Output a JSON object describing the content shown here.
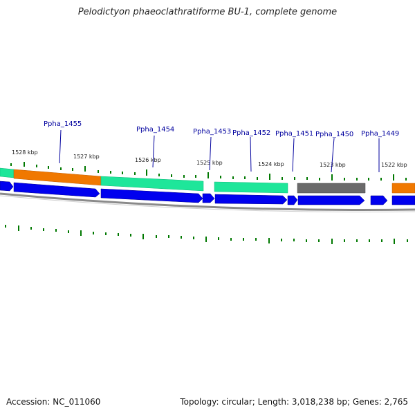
{
  "title": "Pelodictyon phaeoclathratiforme BU-1, complete genome",
  "footer": {
    "accession": "Accession: NC_011060",
    "topology": "Topology: circular; Length: 3,018,238 bp; Genes: 2,765"
  },
  "colors": {
    "forward_strand": "#0000ee",
    "green_feature": "#1ee69a",
    "orange_feature": "#f07800",
    "gray_feature": "#6a6a6a",
    "gene_label": "#00009e",
    "tick": "#007800",
    "backbone": "#8a8a8a"
  },
  "kbp_labels": [
    "1528 kbp",
    "1527 kbp",
    "1526 kbp",
    "1525 kbp",
    "1524 kbp",
    "1523 kbp",
    "1522 kbp"
  ],
  "gene_labels": [
    "Ppha_1455",
    "Ppha_1454",
    "Ppha_1453",
    "Ppha_1452",
    "Ppha_1451",
    "Ppha_1450",
    "Ppha_1449"
  ]
}
